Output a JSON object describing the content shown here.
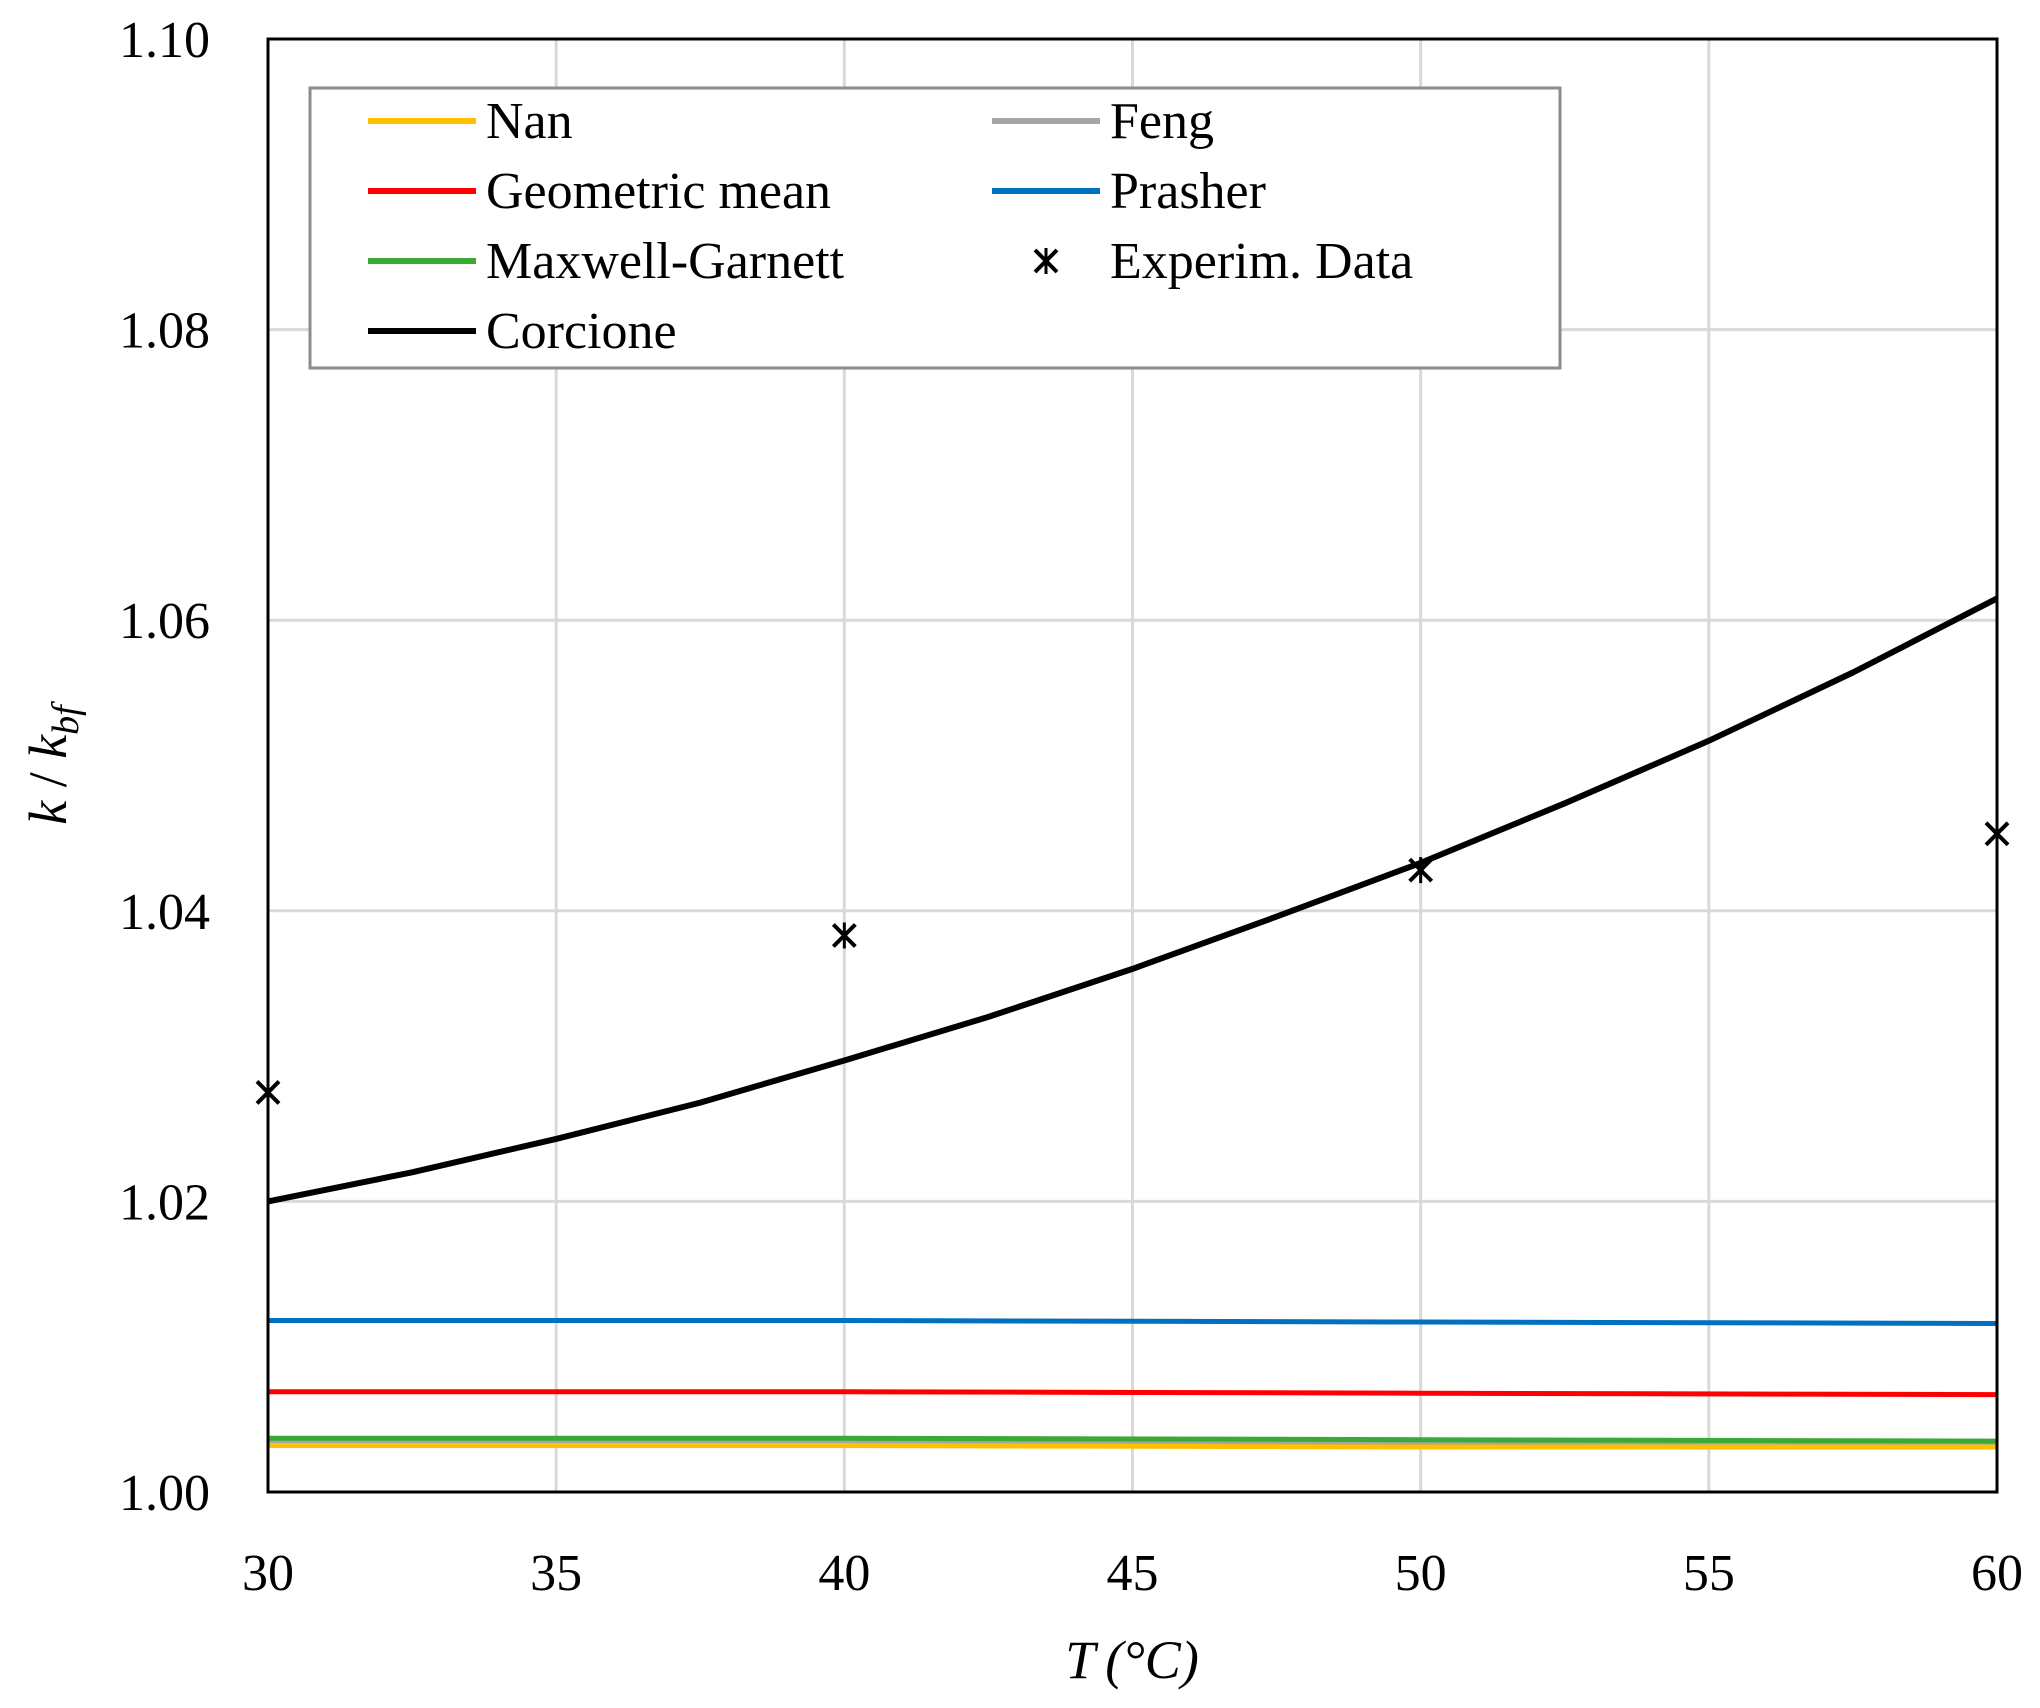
{
  "chart_data": {
    "type": "line",
    "title": "",
    "xlabel": "T (°C)",
    "xlabel_parts": {
      "symbol": "T",
      "unit": "(°C)"
    },
    "ylabel": "k / k_bf",
    "ylabel_parts": {
      "k": "k",
      "sep": " / ",
      "kb": "k",
      "sub": "bf"
    },
    "xlim": [
      30,
      60
    ],
    "ylim": [
      1.0,
      1.1
    ],
    "x_ticks": [
      30,
      35,
      40,
      45,
      50,
      55,
      60
    ],
    "y_ticks": [
      "1.00",
      "1.02",
      "1.04",
      "1.06",
      "1.08",
      "1.10"
    ],
    "grid": true,
    "legend_position": "top-left",
    "series": [
      {
        "name": "Nan",
        "color": "#FFC000",
        "style": "line",
        "x": [
          30,
          40,
          50,
          60
        ],
        "values": [
          1.0032,
          1.0032,
          1.0031,
          1.0031
        ]
      },
      {
        "name": "Feng",
        "color": "#A5A5A5",
        "style": "line",
        "x": [
          30,
          40,
          50,
          60
        ],
        "values": [
          1.0035,
          1.0035,
          1.0034,
          1.0034
        ]
      },
      {
        "name": "Geometric mean",
        "color": "#FF0000",
        "style": "line",
        "x": [
          30,
          40,
          50,
          60
        ],
        "values": [
          1.0069,
          1.0069,
          1.0068,
          1.0067
        ]
      },
      {
        "name": "Prasher",
        "color": "#0070C0",
        "style": "line",
        "x": [
          30,
          40,
          50,
          60
        ],
        "values": [
          1.0118,
          1.0118,
          1.0117,
          1.0116
        ]
      },
      {
        "name": "Maxwell-Garnett",
        "color": "#3AAA35",
        "style": "line",
        "x": [
          30,
          40,
          50,
          60
        ],
        "values": [
          1.0037,
          1.0037,
          1.0036,
          1.0035
        ]
      },
      {
        "name": "Experim. Data",
        "color": "#000000",
        "style": "marker",
        "x": [
          30,
          40,
          50,
          60
        ],
        "values": [
          1.0275,
          1.0383,
          1.0428,
          1.0453
        ]
      },
      {
        "name": "Corcione",
        "color": "#000000",
        "style": "line",
        "x": [
          30,
          32.5,
          35,
          37.5,
          40,
          42.5,
          45,
          47.5,
          50,
          52.5,
          55,
          57.5,
          60
        ],
        "values": [
          1.02,
          1.022,
          1.0243,
          1.0268,
          1.0297,
          1.0327,
          1.036,
          1.0396,
          1.0433,
          1.0474,
          1.0517,
          1.0564,
          1.0615
        ]
      }
    ]
  }
}
